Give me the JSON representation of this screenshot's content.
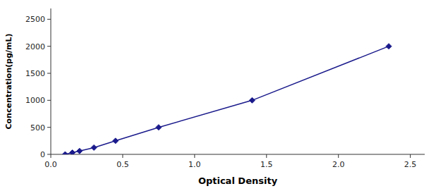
{
  "chart_data": {
    "type": "line",
    "xlabel": "Optical Density",
    "ylabel": "Concentration(pg/mL)",
    "x": [
      0.1,
      0.15,
      0.2,
      0.3,
      0.45,
      0.75,
      1.4,
      2.35
    ],
    "series": [
      {
        "color": "#1a1a8c",
        "marker": "diamond",
        "line_style": "solid",
        "values": [
          0,
          31.25,
          62.5,
          125,
          250,
          500,
          1000,
          2000
        ]
      }
    ],
    "xlim": [
      0,
      2.6
    ],
    "ylim": [
      0,
      2700
    ],
    "xticks": [
      {
        "value": 0,
        "label": "0.0"
      },
      0.5,
      {
        "value": 1.0,
        "label": "1.0"
      },
      1.5,
      {
        "value": 2.0,
        "label": "2.0"
      },
      2.5
    ],
    "yticks": [
      0,
      500,
      1000,
      1500,
      2000,
      2500
    ],
    "grid": false
  }
}
